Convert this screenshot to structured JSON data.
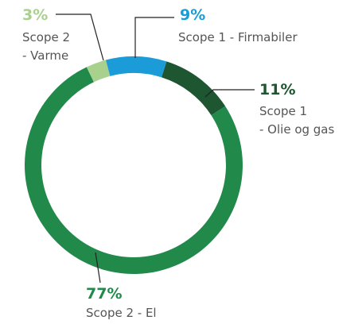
{
  "chart_data": {
    "type": "donut",
    "categories": [
      "Scope 2\n- Varme",
      "Scope 1 - Firmabiler",
      "Scope 1\n- Olie og gas",
      "Scope 2 - El"
    ],
    "values": [
      3,
      9,
      11,
      77
    ],
    "value_labels": [
      "3%",
      "9%",
      "11%",
      "77%"
    ],
    "colors": [
      "#a9d18e",
      "#1b9bd7",
      "#1d5631",
      "#21894a"
    ]
  }
}
